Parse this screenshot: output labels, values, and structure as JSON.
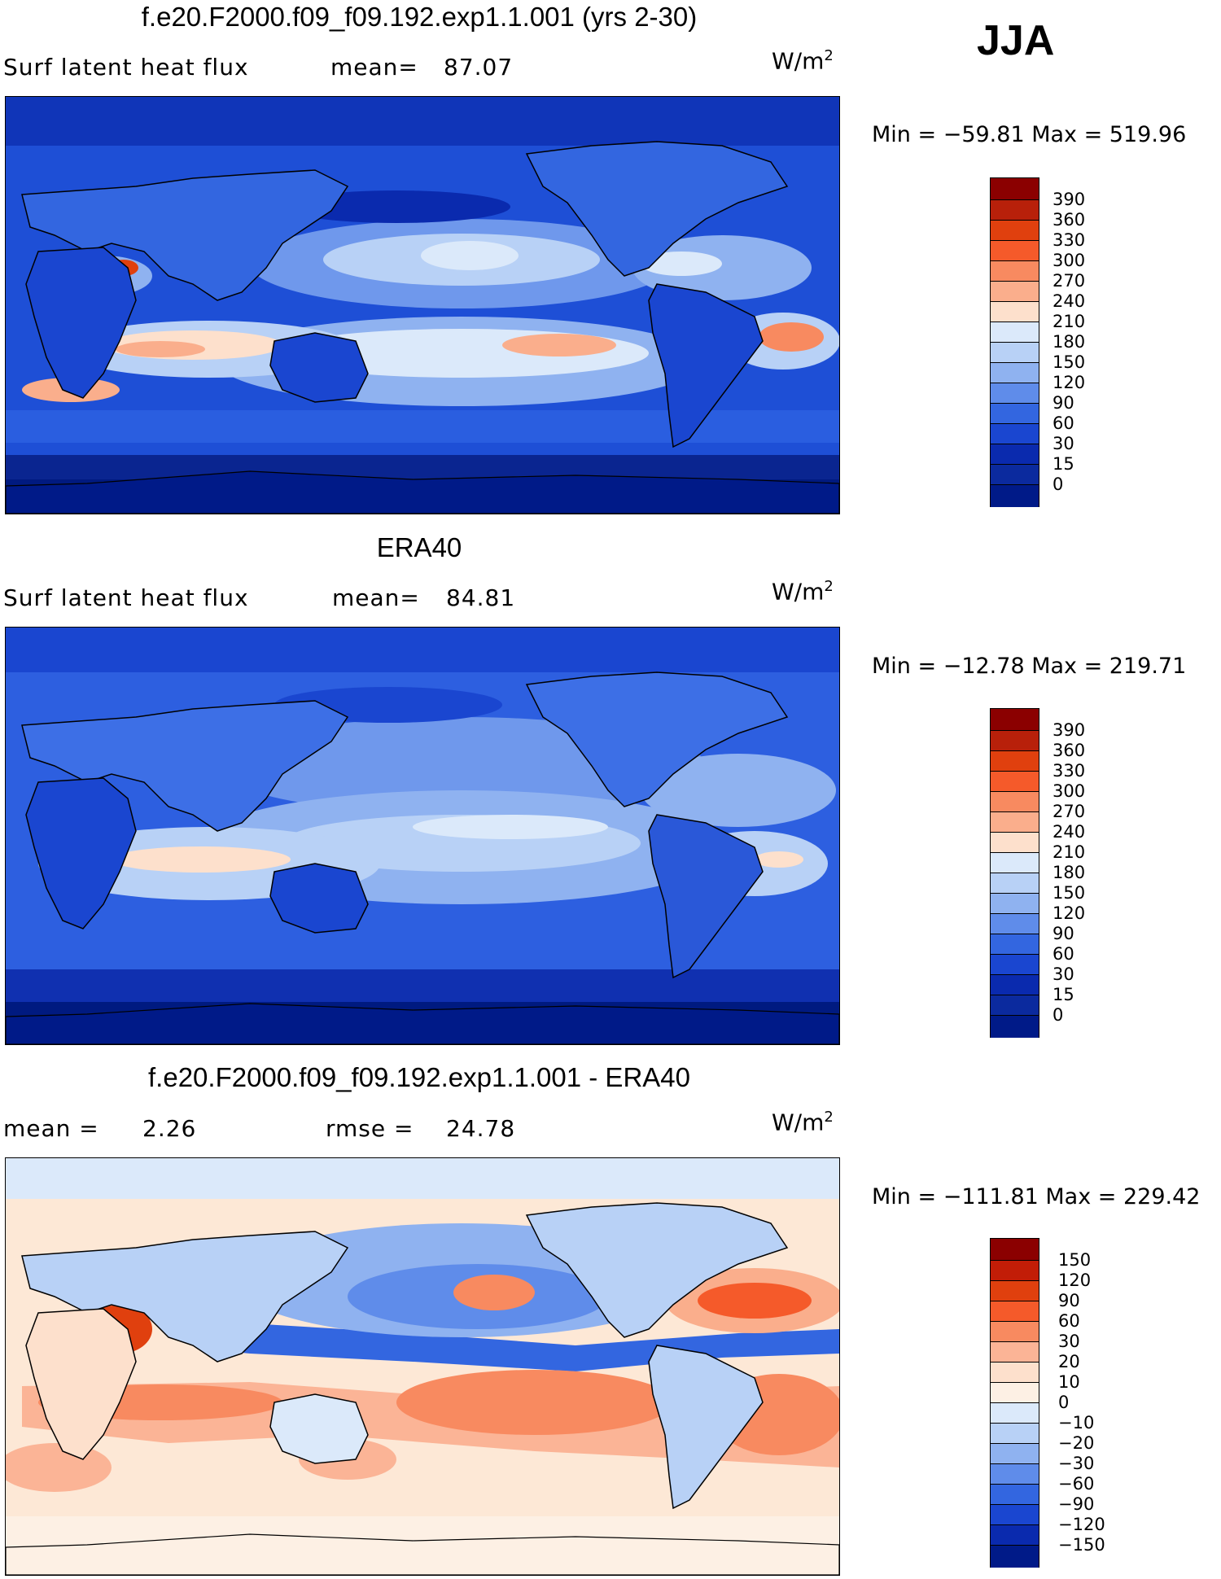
{
  "season": "JJA",
  "panels": [
    {
      "id": "model",
      "title": "f.e20.F2000.f09_f09.192.exp1.1.001 (yrs 2-30)",
      "left_label": "Surf latent heat flux",
      "stat1_label": "mean=",
      "stat1_value": "87.07",
      "stat2_label": "",
      "stat2_value": "",
      "units_base": "W/m",
      "units_sup": "2",
      "min_text": "Min = −59.81 Max = 519.96",
      "colorbar": {
        "labels": [
          "390",
          "360",
          "330",
          "300",
          "270",
          "240",
          "210",
          "180",
          "150",
          "120",
          "90",
          "60",
          "30",
          "15",
          "0"
        ],
        "colors": [
          "#8b0000",
          "#b8200a",
          "#e0400e",
          "#f55a2a",
          "#f88a60",
          "#faae8c",
          "#fde0cc",
          "#dbe9fa",
          "#b8d1f6",
          "#8fb2f0",
          "#5f8cea",
          "#3366e0",
          "#1a46d0",
          "#0a2aae",
          "#001a88"
        ]
      }
    },
    {
      "id": "obs",
      "title": "ERA40",
      "left_label": "Surf latent heat flux",
      "stat1_label": "mean=",
      "stat1_value": "84.81",
      "stat2_label": "",
      "stat2_value": "",
      "units_base": "W/m",
      "units_sup": "2",
      "min_text": "Min = −12.78 Max = 219.71",
      "colorbar": {
        "labels": [
          "390",
          "360",
          "330",
          "300",
          "270",
          "240",
          "210",
          "180",
          "150",
          "120",
          "90",
          "60",
          "30",
          "15",
          "0"
        ],
        "colors": [
          "#8b0000",
          "#b8200a",
          "#e0400e",
          "#f55a2a",
          "#f88a60",
          "#faae8c",
          "#fde0cc",
          "#dbe9fa",
          "#b8d1f6",
          "#8fb2f0",
          "#5f8cea",
          "#3366e0",
          "#1a46d0",
          "#0a2aae",
          "#001a88"
        ]
      }
    },
    {
      "id": "diff",
      "title": "f.e20.F2000.f09_f09.192.exp1.1.001 - ERA40",
      "left_label": "mean =",
      "stat1_label": "",
      "stat1_value": "2.26",
      "stat2_label": "rmse =",
      "stat2_value": "24.78",
      "units_base": "W/m",
      "units_sup": "2",
      "min_text": "Min = −111.81 Max = 229.42",
      "colorbar": {
        "labels": [
          "150",
          "120",
          "90",
          "60",
          "30",
          "20",
          "10",
          "0",
          "−10",
          "−20",
          "−30",
          "−60",
          "−90",
          "−120",
          "−150"
        ],
        "colors": [
          "#8b0000",
          "#c21d07",
          "#e0400e",
          "#f55a2a",
          "#f88a60",
          "#fbb496",
          "#fde0cc",
          "#fdf0e4",
          "#dbe9fa",
          "#b8d1f6",
          "#8fb2f0",
          "#5f8cea",
          "#3366e0",
          "#1a46d0",
          "#0a2aae",
          "#001a88"
        ]
      }
    }
  ]
}
